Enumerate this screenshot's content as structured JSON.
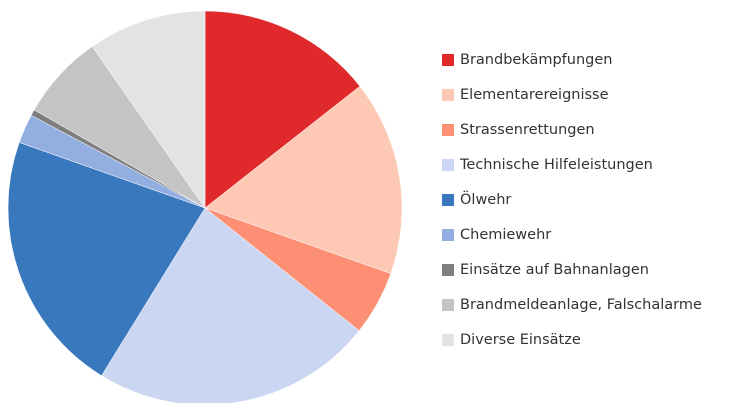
{
  "chart_data": {
    "type": "pie",
    "categories": [
      "Brandbekämpfungen",
      "Elementarereignisse",
      "Strassenrettungen",
      "Technische Hilfeleistungen",
      "Ölwehr",
      "Chemiewehr",
      "Einsätze auf Bahnanlagen",
      "Brandmeldeanlage, Falschalarme",
      "Diverse Einsätze"
    ],
    "values": [
      14.4,
      16.0,
      5.3,
      23.1,
      21.6,
      2.4,
      0.5,
      7.0,
      9.7
    ],
    "colors": [
      "#e0292b",
      "#fdc9b5",
      "#fc8f74",
      "#cbd7f2",
      "#3a78be",
      "#93aee0",
      "#7f7f7f",
      "#c4c4c4",
      "#e3e3e3"
    ],
    "legend": "right"
  }
}
